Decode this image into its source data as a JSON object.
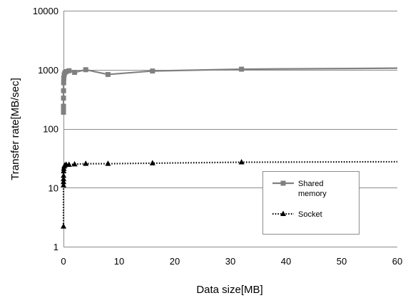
{
  "chart_data": {
    "type": "line",
    "title": "",
    "xlabel": "Data size[MB]",
    "ylabel": "Transfer rate[MB/sec]",
    "xlim": [
      0,
      60
    ],
    "ylim": [
      1,
      10000
    ],
    "yscale": "log",
    "x_ticks": [
      0,
      10,
      20,
      30,
      40,
      50,
      60
    ],
    "y_ticks": [
      1,
      10,
      100,
      1000,
      10000
    ],
    "x_tick_labels": [
      "0",
      "10",
      "20",
      "30",
      "40",
      "50",
      "60"
    ],
    "y_tick_labels": [
      "1",
      "10",
      "100",
      "1000",
      "10000"
    ],
    "grid": "horizontal",
    "legend_position": "lower-right",
    "series": [
      {
        "name": "Shared memory",
        "line_style": "solid",
        "marker": "square",
        "color": "#808080",
        "points": [
          [
            0.001,
            190
          ],
          [
            0.002,
            215
          ],
          [
            0.004,
            240
          ],
          [
            0.008,
            330
          ],
          [
            0.016,
            440
          ],
          [
            0.03,
            600
          ],
          [
            0.06,
            720
          ],
          [
            0.125,
            820
          ],
          [
            0.25,
            890
          ],
          [
            0.5,
            930
          ],
          [
            1,
            960
          ],
          [
            2,
            900
          ],
          [
            4,
            1000
          ],
          [
            8,
            830
          ],
          [
            16,
            950
          ],
          [
            32,
            1020
          ],
          [
            60,
            1060
          ]
        ],
        "marker_points": [
          [
            0.001,
            190
          ],
          [
            0.002,
            215
          ],
          [
            0.004,
            240
          ],
          [
            0.008,
            330
          ],
          [
            0.016,
            440
          ],
          [
            0.03,
            600
          ],
          [
            0.06,
            720
          ],
          [
            0.125,
            820
          ],
          [
            0.25,
            890
          ],
          [
            0.5,
            930
          ],
          [
            1,
            960
          ],
          [
            2,
            900
          ],
          [
            4,
            1000
          ],
          [
            8,
            830
          ],
          [
            16,
            950
          ],
          [
            32,
            1020
          ]
        ]
      },
      {
        "name": "Socket",
        "line_style": "dotted",
        "marker": "triangle",
        "color": "#000000",
        "points": [
          [
            0.001,
            2.2
          ],
          [
            0.002,
            11
          ],
          [
            0.004,
            12.5
          ],
          [
            0.008,
            14
          ],
          [
            0.016,
            16
          ],
          [
            0.03,
            19
          ],
          [
            0.06,
            21
          ],
          [
            0.125,
            23
          ],
          [
            0.25,
            24
          ],
          [
            0.5,
            24.5
          ],
          [
            1,
            24.5
          ],
          [
            2,
            25
          ],
          [
            4,
            25.5
          ],
          [
            8,
            25.5
          ],
          [
            16,
            26
          ],
          [
            32,
            27
          ],
          [
            60,
            27.5
          ]
        ],
        "marker_points": [
          [
            0.001,
            2.2
          ],
          [
            0.002,
            11
          ],
          [
            0.004,
            12.5
          ],
          [
            0.008,
            14
          ],
          [
            0.016,
            16
          ],
          [
            0.03,
            19
          ],
          [
            0.06,
            21
          ],
          [
            0.125,
            23
          ],
          [
            0.25,
            24
          ],
          [
            0.5,
            24.5
          ],
          [
            1,
            24.5
          ],
          [
            2,
            25
          ],
          [
            4,
            25.5
          ],
          [
            8,
            25.5
          ],
          [
            16,
            26
          ],
          [
            32,
            27
          ]
        ]
      }
    ],
    "legend": [
      {
        "lines": [
          "Shared",
          "memory"
        ],
        "series": 0
      },
      {
        "lines": [
          "Socket"
        ],
        "series": 1
      }
    ]
  }
}
